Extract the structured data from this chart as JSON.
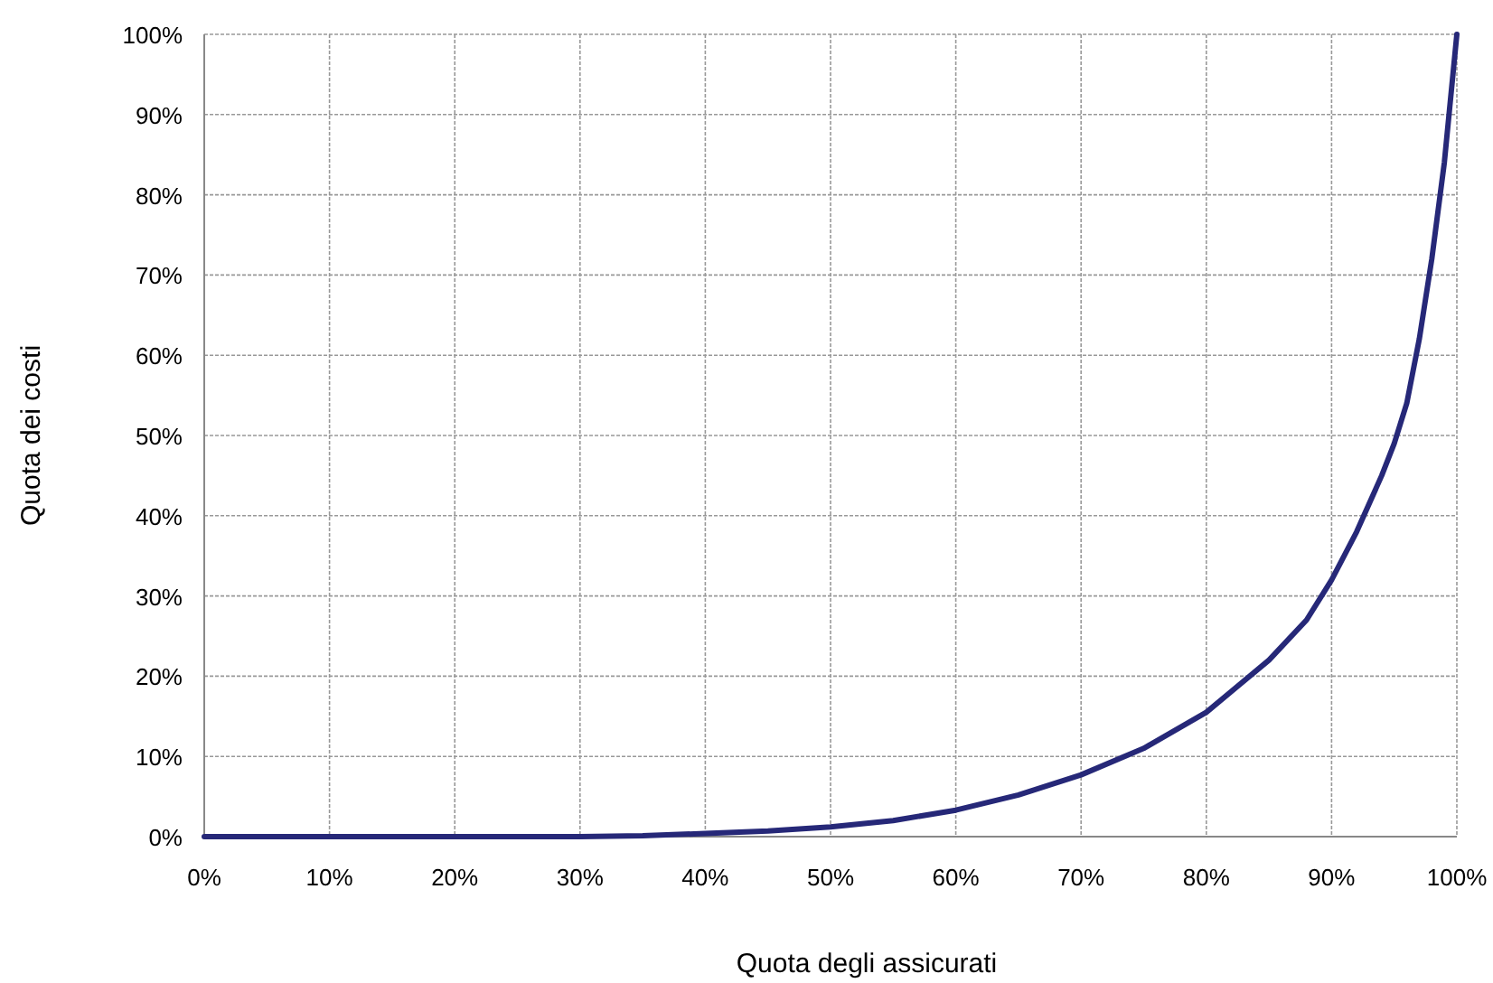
{
  "chart_data": {
    "type": "line",
    "xlabel": "Quota degli assicurati",
    "ylabel": "Quota dei costi",
    "x": [
      0,
      10,
      20,
      30,
      35,
      40,
      45,
      50,
      55,
      60,
      65,
      70,
      75,
      80,
      85,
      88,
      90,
      92,
      94,
      95,
      96,
      97,
      98,
      99,
      100
    ],
    "series": [
      {
        "color": "#262878",
        "values": [
          0,
          0,
          0,
          0,
          0.1,
          0.4,
          0.7,
          1.2,
          2,
          3.3,
          5.2,
          7.7,
          11,
          15.5,
          22,
          27,
          32,
          38,
          45,
          49,
          54,
          62,
          72,
          84,
          100
        ]
      }
    ],
    "xlim": [
      0,
      100
    ],
    "ylim": [
      0,
      100
    ],
    "xticks": [
      {
        "value": 0,
        "label": "0%"
      },
      {
        "value": 10,
        "label": "10%"
      },
      {
        "value": 20,
        "label": "20%"
      },
      {
        "value": 30,
        "label": "30%"
      },
      {
        "value": 40,
        "label": "40%"
      },
      {
        "value": 50,
        "label": "50%"
      },
      {
        "value": 60,
        "label": "60%"
      },
      {
        "value": 70,
        "label": "70%"
      },
      {
        "value": 80,
        "label": "80%"
      },
      {
        "value": 90,
        "label": "90%"
      },
      {
        "value": 100,
        "label": "100%"
      }
    ],
    "yticks": [
      {
        "value": 0,
        "label": "0%"
      },
      {
        "value": 10,
        "label": "10%"
      },
      {
        "value": 20,
        "label": "20%"
      },
      {
        "value": 30,
        "label": "30%"
      },
      {
        "value": 40,
        "label": "40%"
      },
      {
        "value": 50,
        "label": "50%"
      },
      {
        "value": 60,
        "label": "60%"
      },
      {
        "value": 70,
        "label": "70%"
      },
      {
        "value": 80,
        "label": "80%"
      },
      {
        "value": 90,
        "label": "90%"
      },
      {
        "value": 100,
        "label": "100%"
      }
    ],
    "grid": true,
    "marker": "none",
    "line_style": "solid"
  }
}
